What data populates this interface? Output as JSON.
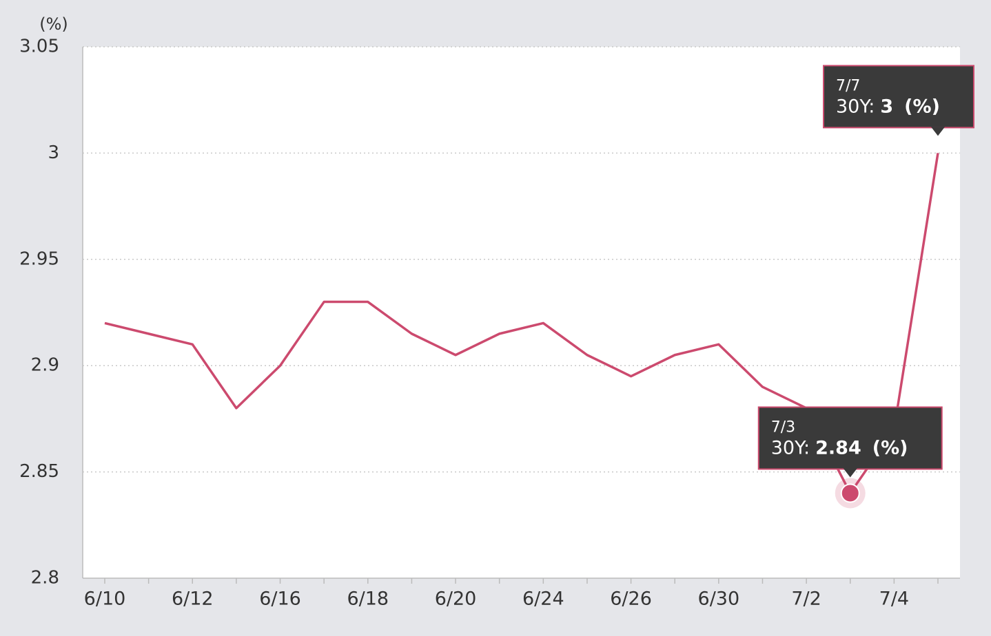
{
  "chart_data": {
    "type": "line",
    "y_unit": "(%)",
    "categories": [
      "6/10",
      null,
      "6/12",
      null,
      "6/16",
      null,
      "6/18",
      null,
      "6/20",
      null,
      "6/24",
      null,
      "6/26",
      null,
      "6/30",
      null,
      "7/2",
      null,
      "7/4",
      null
    ],
    "series": [
      {
        "name": "30Y",
        "color": "#cc4a6e",
        "values": [
          2.92,
          2.915,
          2.91,
          2.88,
          2.9,
          2.93,
          2.93,
          2.915,
          2.905,
          2.915,
          2.92,
          2.905,
          2.895,
          2.905,
          2.91,
          2.89,
          2.88,
          2.84,
          2.87,
          3
        ]
      }
    ],
    "ylim": [
      2.8,
      3.05
    ],
    "yticks": [
      2.8,
      2.85,
      2.9,
      2.95,
      3,
      3.05
    ],
    "grid": true,
    "annotations": [
      {
        "x": "7/7",
        "label": "30Y:",
        "value": 3,
        "unit": "(%)"
      },
      {
        "x": "7/3",
        "label": "30Y:",
        "value": 2.84,
        "unit": "(%)",
        "highlight": true
      }
    ]
  }
}
